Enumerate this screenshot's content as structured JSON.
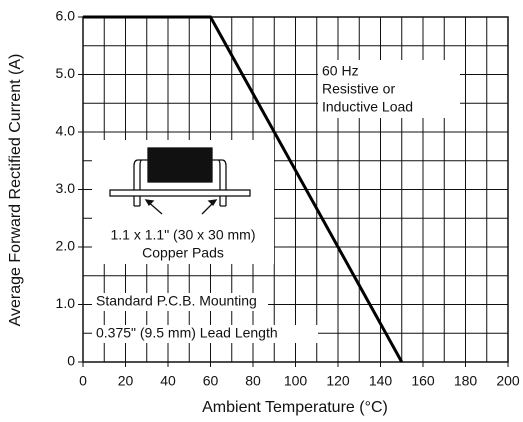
{
  "chart_data": {
    "type": "line",
    "x_label": "Ambient Temperature (°C)",
    "y_label": "Average Forward Rectified Current (A)",
    "x": [
      0,
      60,
      150
    ],
    "values": [
      6,
      6,
      0
    ],
    "color": "#000000",
    "xlim": [
      0,
      200
    ],
    "ylim": [
      0,
      6
    ],
    "xticks": [
      0,
      20,
      40,
      60,
      80,
      100,
      120,
      140,
      160,
      180,
      200
    ],
    "yticks": [
      0,
      {
        "value": 1,
        "label": "1.0"
      },
      {
        "value": 2,
        "label": "2.0"
      },
      {
        "value": 3,
        "label": "3.0"
      },
      {
        "value": 4,
        "label": "4.0"
      },
      {
        "value": 5,
        "label": "5.0"
      },
      {
        "value": 6,
        "label": "6.0"
      }
    ],
    "grid": true,
    "annotations": [
      "60 Hz",
      "Resistive or",
      "Inductive Load",
      "1.1 x 1.1\" (30 x 30 mm)",
      "Copper Pads",
      "Standard P.C.B. Mounting",
      "0.375\" (9.5 mm) Lead Length"
    ]
  }
}
